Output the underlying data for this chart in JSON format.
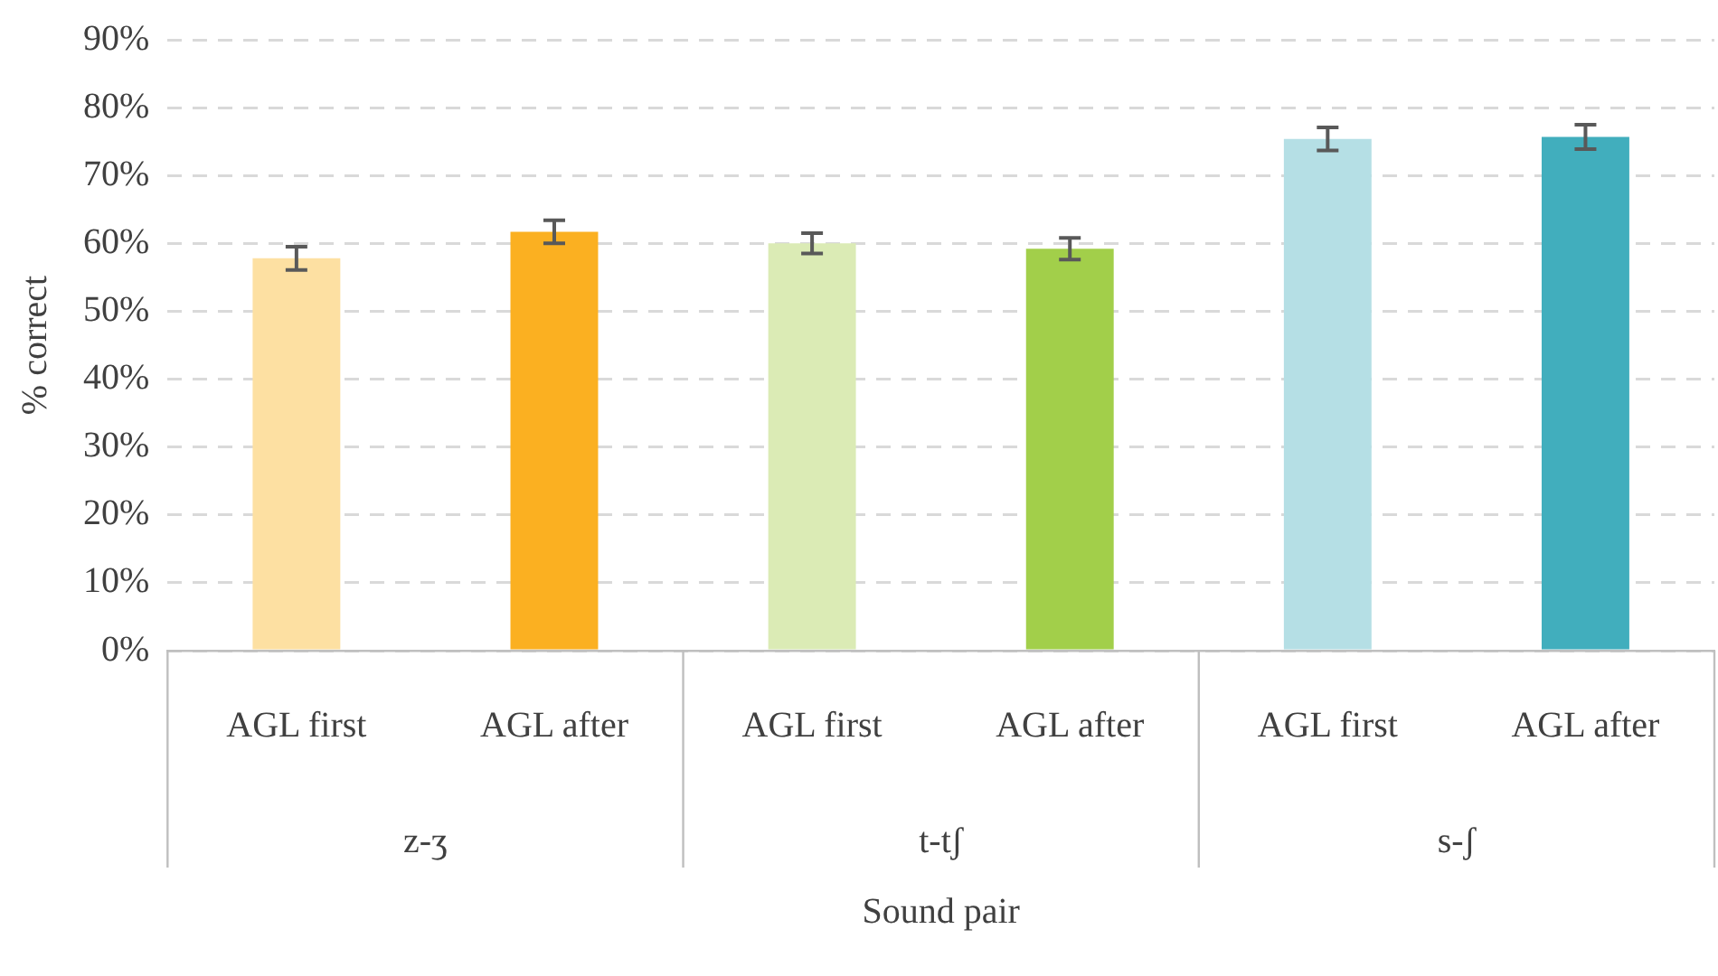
{
  "chart_data": {
    "type": "bar",
    "ylabel": "% correct",
    "categories": [
      "AGL first",
      "AGL after",
      "AGL first",
      "AGL after",
      "AGL first",
      "AGL after"
    ],
    "values": [
      57.8,
      61.7,
      60.0,
      59.2,
      75.4,
      75.7
    ],
    "errors": [
      1.7,
      1.7,
      1.5,
      1.6,
      1.7,
      1.8
    ],
    "colors": [
      "#fde0a2",
      "#fbb021",
      "#dbebb5",
      "#a2cf4a",
      "#b5dfe5",
      "#41aebd"
    ],
    "annotations": [
      "z-ʒ",
      "t-tʃ",
      "s-ʃ",
      "Sound pair"
    ],
    "ylim": [
      0,
      90
    ],
    "yticks": [
      {
        "value": 0,
        "label": "0%"
      },
      {
        "value": 10,
        "label": "10%"
      },
      {
        "value": 20,
        "label": "20%"
      },
      {
        "value": 30,
        "label": "30%"
      },
      {
        "value": 40,
        "label": "40%"
      },
      {
        "value": 50,
        "label": "50%"
      },
      {
        "value": 60,
        "label": "60%"
      },
      {
        "value": 70,
        "label": "70%"
      },
      {
        "value": 80,
        "label": "80%"
      },
      {
        "value": 90,
        "label": "90%"
      }
    ],
    "grid": "y",
    "legend": false
  }
}
